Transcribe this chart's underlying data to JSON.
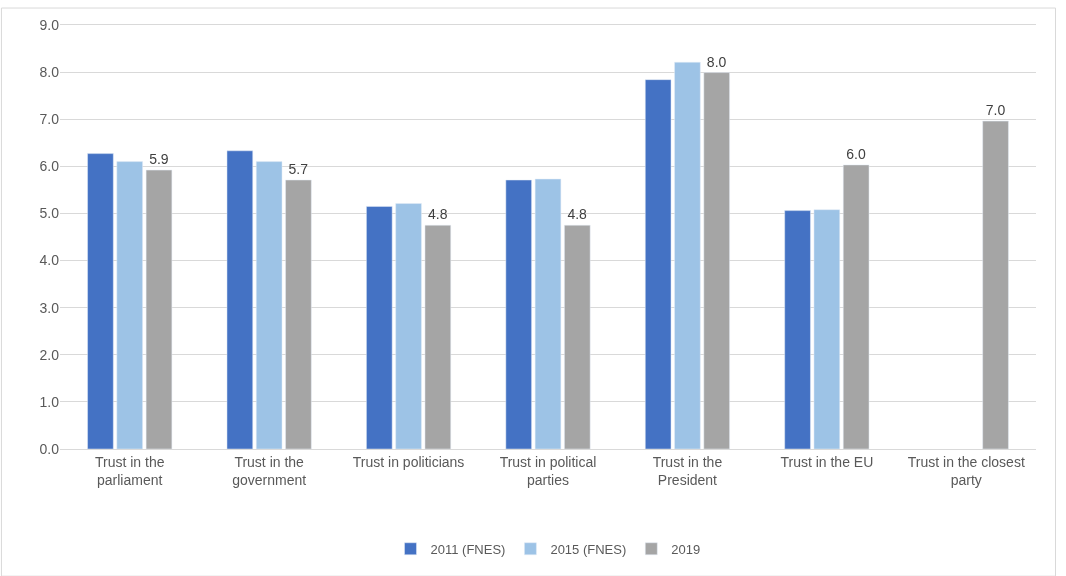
{
  "chart_data": {
    "type": "bar",
    "categories": [
      "Trust in the parliament",
      "Trust in the government",
      "Trust in politicians",
      "Trust in political parties",
      "Trust in the President",
      "Trust in the EU",
      "Trust in the closest party"
    ],
    "series": [
      {
        "name": "2011 (FNES)",
        "color": "#4472c4",
        "values": [
          6.27,
          6.33,
          5.15,
          5.71,
          7.84,
          5.06,
          null
        ]
      },
      {
        "name": "2015 (FNES)",
        "color": "#9dc3e6",
        "values": [
          6.1,
          6.1,
          5.21,
          5.73,
          8.21,
          5.08,
          null
        ]
      },
      {
        "name": "2019",
        "color": "#a5a5a5",
        "values": [
          5.92,
          5.71,
          4.75,
          4.75,
          7.99,
          6.03,
          6.96
        ],
        "value_labels": [
          "5.9",
          "5.7",
          "4.8",
          "4.8",
          "8.0",
          "6.0",
          "7.0"
        ]
      }
    ],
    "ylim": [
      0,
      9
    ],
    "yticks": [
      "0.0",
      "1.0",
      "2.0",
      "3.0",
      "4.0",
      "5.0",
      "6.0",
      "7.0",
      "8.0",
      "9.0"
    ],
    "grid": "y",
    "legend": "bottom"
  }
}
